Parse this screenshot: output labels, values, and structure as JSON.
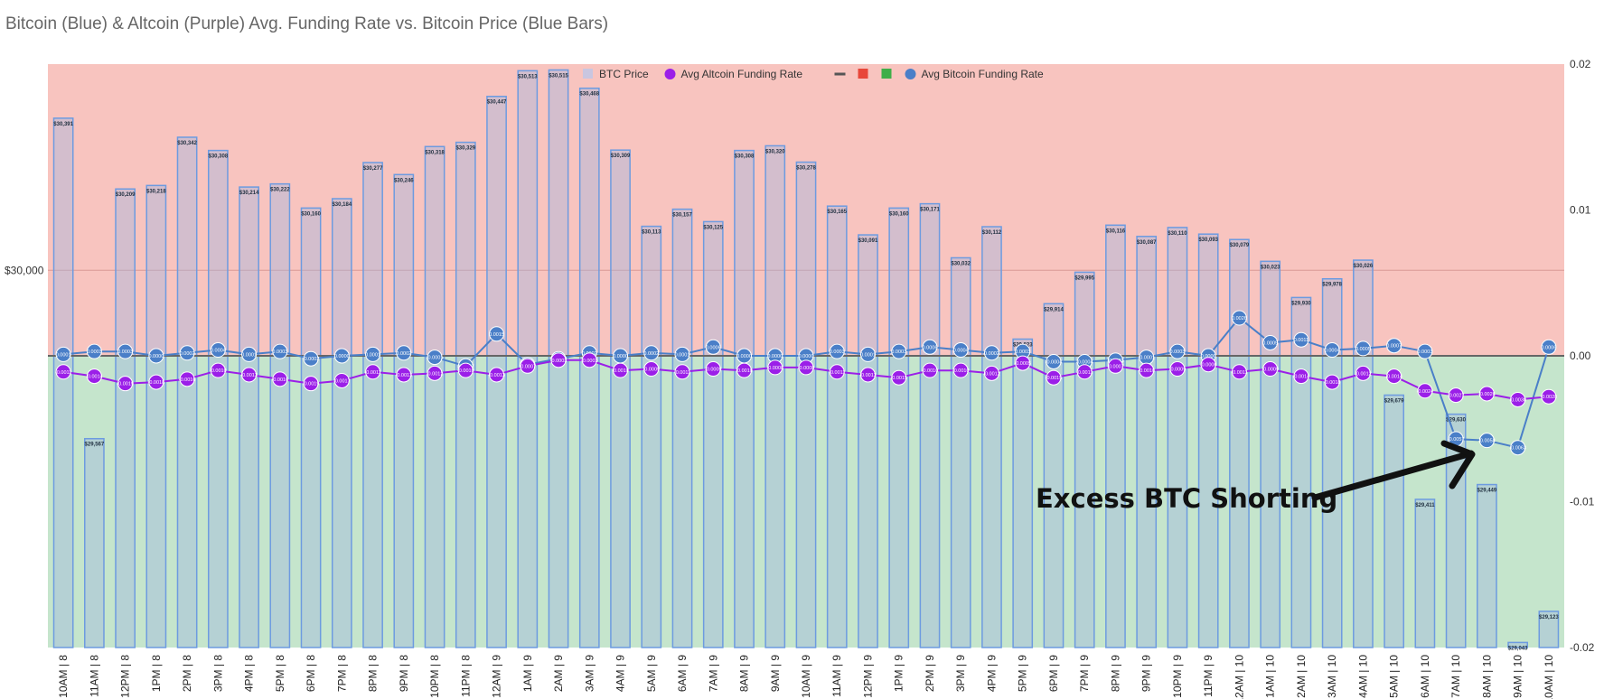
{
  "chart_data": {
    "type": "bar+line",
    "title": "Bitcoin (Blue) & Altcoin (Purple) Avg. Funding Rate vs. Bitcoin Price (Blue Bars)",
    "categories": [
      "10AM | 8",
      "11AM | 8",
      "12PM | 8",
      "1PM | 8",
      "2PM | 8",
      "3PM | 8",
      "4PM | 8",
      "5PM | 8",
      "6PM | 8",
      "7PM | 8",
      "8PM | 8",
      "9PM | 8",
      "10PM | 8",
      "11PM | 8",
      "12AM | 9",
      "1AM | 9",
      "2AM | 9",
      "3AM | 9",
      "4AM | 9",
      "5AM | 9",
      "6AM | 9",
      "7AM | 9",
      "8AM | 9",
      "9AM | 9",
      "10AM | 9",
      "11AM | 9",
      "12PM | 9",
      "1PM | 9",
      "2PM | 9",
      "3PM | 9",
      "4PM | 9",
      "5PM | 9",
      "6PM | 9",
      "7PM | 9",
      "8PM | 9",
      "9PM | 9",
      "10PM | 9",
      "11PM | 9",
      "12AM | 10",
      "1AM | 10",
      "2AM | 10",
      "3AM | 10",
      "4AM | 10",
      "5AM | 10",
      "6AM | 10",
      "7AM | 10",
      "8AM | 10",
      "9AM | 10",
      "10AM | 10"
    ],
    "series": [
      {
        "name": "BTC Price",
        "axis": "left",
        "kind": "bar",
        "color": "#c9c6e0",
        "values": [
          30391,
          29567,
          30209,
          30218,
          30342,
          30308,
          30214,
          30222,
          30160,
          30184,
          30277,
          30246,
          30318,
          30329,
          30447,
          30513,
          30515,
          30468,
          30309,
          30113,
          30157,
          30125,
          30308,
          30320,
          30278,
          30165,
          30091,
          30160,
          30171,
          30032,
          30112,
          29823,
          29914,
          29995,
          30116,
          30087,
          30110,
          30093,
          30079,
          30023,
          29930,
          29978,
          30026,
          29679,
          29411,
          29630,
          29449,
          29043,
          29123
        ],
        "labels": [
          "$30,391",
          "$29,567",
          "$30,209",
          "$30,218",
          "$30,342",
          "$30,308",
          "$30,214",
          "$30,222",
          "$30,160",
          "$30,184",
          "$30,277",
          "$30,246",
          "$30,318",
          "$30,329",
          "$30,447",
          "$30,513",
          "$30,515",
          "$30,468",
          "$30,309",
          "$30,113",
          "$30,157",
          "$30,125",
          "$30,308",
          "$30,320",
          "$30,278",
          "$30,165",
          "$30,091",
          "$30,160",
          "$30,171",
          "$30,032",
          "$30,112",
          "$29,823",
          "$29,914",
          "$29,995",
          "$30,116",
          "$30,087",
          "$30,110",
          "$30,093",
          "$30,079",
          "$30,023",
          "$29,930",
          "$29,978",
          "$30,026",
          "$29,679",
          "$29,411",
          "$29,630",
          "$29,449",
          "$29,043",
          "$29,123"
        ]
      },
      {
        "name": "Avg Altcoin Funding Rate",
        "axis": "right",
        "kind": "line",
        "color": "#9b1fe8",
        "values": [
          -0.0011,
          -0.0014,
          -0.0019,
          -0.0018,
          -0.0016,
          -0.001,
          -0.0013,
          -0.0016,
          -0.0019,
          -0.0017,
          -0.0011,
          -0.0013,
          -0.0012,
          -0.001,
          -0.0013,
          -0.0007,
          -0.0003,
          -0.0003,
          -0.001,
          -0.0009,
          -0.0011,
          -0.0009,
          -0.001,
          -0.0008,
          -0.0008,
          -0.0011,
          -0.0013,
          -0.0015,
          -0.001,
          -0.001,
          -0.0012,
          -0.0005,
          -0.0015,
          -0.0011,
          -0.0007,
          -0.001,
          -0.0009,
          -0.0006,
          -0.0011,
          -0.0009,
          -0.0014,
          -0.0018,
          -0.0012,
          -0.0014,
          -0.0024,
          -0.0027,
          -0.0026,
          -0.003,
          -0.0028
        ],
        "labels": [
          "-0.0011",
          "-0.0014",
          "-0.0019",
          "-0.0018",
          "-0.0016",
          "-0.0010",
          "-0.0013",
          "-0.0016",
          "-0.0019",
          "-0.0017",
          "-0.0011",
          "-0.0013",
          "-0.0012",
          "-0.0010",
          "-0.0013",
          "-0.0007",
          "-0.0003",
          "-0.0003",
          "-0.0010",
          "-0.0009",
          "-0.0011",
          "-0.0009",
          "-0.0010",
          "-0.0008",
          "-0.0008",
          "-0.0011",
          "-0.0013",
          "-0.0015",
          "-0.0010",
          "-0.0010",
          "-0.0012",
          "-0.0005",
          "-0.0015",
          "-0.0011",
          "-0.0007",
          "-0.0010",
          "-0.0009",
          "-0.0006",
          "-0.0011",
          "-0.0009",
          "-0.0014",
          "-0.0018",
          "-0.0012",
          "-0.0014",
          "-0.0024",
          "-0.0027",
          "-0.0026",
          "-0.0030",
          "-0.0028"
        ]
      },
      {
        "name": "Avg Bitcoin Funding Rate",
        "axis": "right",
        "kind": "line",
        "color": "#4a7fc8",
        "values": [
          0.0001,
          0.0003,
          0.0003,
          0.0,
          0.0002,
          0.0004,
          0.0001,
          0.0003,
          -0.0002,
          0.0,
          0.0001,
          0.0002,
          -0.0001,
          -0.0007,
          0.0015,
          -0.0006,
          -0.0002,
          0.0002,
          0.0,
          0.0002,
          0.0001,
          0.0006,
          0.0,
          0.0,
          0.0,
          0.0003,
          0.0001,
          0.0003,
          0.0006,
          0.0004,
          0.0002,
          0.0003,
          -0.0004,
          -0.0004,
          -0.0003,
          -0.0001,
          0.0003,
          0.0,
          0.0026,
          0.0009,
          0.0011,
          0.0004,
          0.0005,
          0.0007,
          0.0003,
          -0.0057,
          -0.0058,
          -0.0063,
          0.0006
        ],
        "labels": [
          "0.0001",
          "0.0003",
          "0.0003",
          "0.0000",
          "0.0002",
          "0.0004",
          "0.0001",
          "0.0003",
          "-0.0002",
          "0.0000",
          "0.0001",
          "0.0002",
          "-0.0001",
          "-0.0007",
          "0.0015",
          "-0.0006",
          "-0.0002",
          "0.0002",
          "0.0000",
          "0.0002",
          "0.0001",
          "0.0006",
          "0.0000",
          "0.0000",
          "0.0000",
          "0.0003",
          "0.0001",
          "0.0003",
          "0.0006",
          "0.0004",
          "0.0002",
          "0.0003",
          "-0.0004",
          "-0.0004",
          "-0.0003",
          "-0.0001",
          "0.0003",
          "0.0000",
          "0.0026",
          "0.0009",
          "0.0011",
          "0.0004",
          "0.0005",
          "0.0007",
          "0.0003",
          "-0.0057",
          "-0.0058",
          "-0.0063",
          "0.0006"
        ]
      }
    ],
    "left_axis": {
      "ylim": [
        29030,
        30530
      ],
      "ticks": [
        {
          "value": 30000,
          "label": "$30,000"
        }
      ]
    },
    "right_axis": {
      "ylim": [
        -0.02,
        0.02
      ],
      "ticks": [
        {
          "value": 0.02,
          "label": "0.02"
        },
        {
          "value": 0.01,
          "label": "0.01"
        },
        {
          "value": 0.0,
          "label": "0.00"
        },
        {
          "value": -0.01,
          "label": "-0.01"
        },
        {
          "value": -0.02,
          "label": "-0.02"
        }
      ]
    },
    "zones": {
      "positive_color": "#f8c4bf",
      "negative_color": "#c5e5cc",
      "zero_line_color": "#666666"
    },
    "legend": {
      "placement": "top",
      "items": [
        {
          "label": "BTC Price",
          "color": "#c9c6e0",
          "shape": "square"
        },
        {
          "label": "Avg Altcoin Funding Rate",
          "color": "#9b1fe8",
          "shape": "circle"
        },
        {
          "label": "",
          "color": "#555555",
          "shape": "line"
        },
        {
          "label": "",
          "color": "#e8473a",
          "shape": "square"
        },
        {
          "label": "",
          "color": "#3fae49",
          "shape": "square"
        },
        {
          "label": "Avg Bitcoin Funding Rate",
          "color": "#4a7fc8",
          "shape": "circle"
        }
      ]
    },
    "annotation": {
      "text": "Excess BTC Shorting",
      "points_to": "7AM | 10"
    }
  }
}
